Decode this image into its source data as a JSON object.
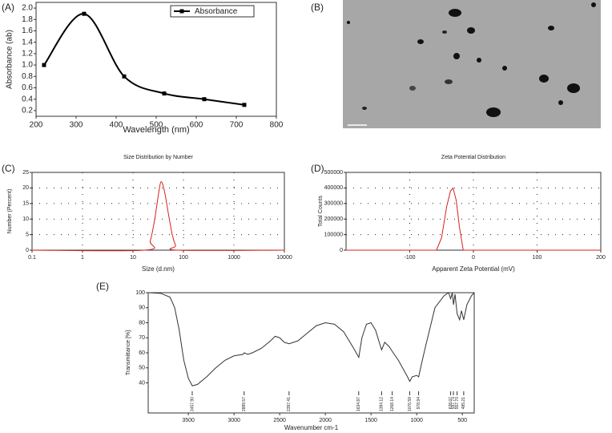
{
  "panel_b_label": "(B)",
  "chart_data": [
    {
      "type": "line",
      "panel": "(A)",
      "x_label": "Wavelength (nm)",
      "y_label": "Absorbance (ab)",
      "x": [
        220,
        320,
        420,
        520,
        620,
        720
      ],
      "series": [
        {
          "name": "Absorbance",
          "color": "#000000",
          "values": [
            1.0,
            1.9,
            0.8,
            0.5,
            0.4,
            0.3
          ]
        }
      ],
      "xlim": [
        200,
        800
      ],
      "xticks": [
        200,
        300,
        400,
        500,
        600,
        700,
        800
      ],
      "ylim": [
        0.1,
        2.1
      ],
      "yticks": [
        0.2,
        0.4,
        0.6,
        0.8,
        {
          "value": 1.0,
          "label": "1.0"
        },
        1.2,
        1.4,
        1.6,
        1.8,
        {
          "value": 2.0,
          "label": "2.0"
        }
      ],
      "smooth": true,
      "markers": true,
      "grid": false,
      "legend": "top-right"
    },
    {
      "type": "line",
      "panel": "(C)",
      "title": "Size Distribution by Number",
      "x_label": "Size (d.nm)",
      "y_label": "Number (Percent)",
      "x": [
        0.1,
        17,
        22,
        27,
        32,
        36,
        42,
        50,
        60,
        70,
        80,
        10000
      ],
      "color": "#d62020",
      "values": [
        0,
        0,
        3,
        10,
        18,
        22,
        19,
        12,
        5,
        1.5,
        0,
        0
      ],
      "xscale": "log",
      "xlim": [
        0.1,
        10000
      ],
      "xticks": [
        0.1,
        1,
        10,
        100,
        1000,
        10000
      ],
      "ylim": [
        0,
        25
      ],
      "yticks": [
        0,
        5,
        10,
        15,
        20,
        25
      ],
      "grid": true,
      "smooth": true
    },
    {
      "type": "line",
      "panel": "(D)",
      "title": "Zeta Potential Distribution",
      "x_label": "Apparent Zeta Potential (mV)",
      "y_label": "Total Counts",
      "x": [
        -200,
        -58,
        -50,
        -42,
        -36,
        -32,
        -27,
        -22,
        -16,
        200
      ],
      "color": "#d62020",
      "values": [
        0,
        0,
        80000,
        280000,
        380000,
        400000,
        320000,
        150000,
        0,
        0
      ],
      "xlim": [
        -200,
        200
      ],
      "xticks": [
        -100,
        0,
        100,
        200
      ],
      "ylim": [
        0,
        500000
      ],
      "yticks": [
        0,
        100000,
        200000,
        300000,
        400000,
        500000
      ],
      "grid": true,
      "smooth": false
    },
    {
      "type": "line",
      "panel": "(E)",
      "x_label": "Wavenumber cm-1",
      "y_label": "Transmittance [%]",
      "x": [
        3940,
        3800,
        3700,
        3650,
        3600,
        3550,
        3500,
        3457,
        3400,
        3300,
        3200,
        3100,
        3000,
        2900,
        2889,
        2850,
        2800,
        2700,
        2600,
        2550,
        2500,
        2450,
        2397,
        2300,
        2200,
        2100,
        2000,
        1900,
        1800,
        1700,
        1634,
        1600,
        1550,
        1500,
        1450,
        1400,
        1384,
        1350,
        1300,
        1268,
        1200,
        1100,
        1076,
        1050,
        1000,
        978,
        950,
        900,
        800,
        700,
        650,
        628,
        610,
        597,
        580,
        557,
        530,
        510,
        485,
        450,
        400,
        370
      ],
      "color": "#333333",
      "values": [
        100,
        99.5,
        97,
        90,
        75,
        55,
        43,
        38,
        39,
        44,
        50,
        55,
        58,
        59,
        60,
        59,
        60,
        63,
        68,
        71,
        70,
        67,
        66,
        68,
        73,
        78,
        80,
        79,
        74,
        64,
        57,
        70,
        79,
        80,
        75,
        65,
        62,
        67,
        64,
        61,
        55,
        44,
        41,
        44,
        45,
        44,
        52,
        65,
        90,
        98,
        100,
        96,
        100,
        92,
        99,
        86,
        82,
        88,
        82,
        92,
        98,
        100
      ],
      "xlim": [
        3940,
        370
      ],
      "xticks": [
        3500,
        3000,
        2500,
        2000,
        1500,
        1000,
        500
      ],
      "ylim": [
        20,
        100
      ],
      "yticks": [
        40,
        50,
        60,
        70,
        80,
        90,
        100
      ],
      "grid": false,
      "smooth": false,
      "annotations": [
        {
          "value": 3457.9,
          "label": "3457.90"
        },
        {
          "value": 2889.57,
          "label": "2889.57"
        },
        {
          "value": 2397.41,
          "label": "2397.41"
        },
        {
          "value": 1634.87,
          "label": "1634.87"
        },
        {
          "value": 1384.12,
          "label": "1384.12"
        },
        {
          "value": 1268.14,
          "label": "1268.14"
        },
        {
          "value": 1076.59,
          "label": "1076.59"
        },
        {
          "value": 978.94,
          "label": "978.94"
        },
        {
          "value": 628.07,
          "label": "628.07"
        },
        {
          "value": 597.74,
          "label": "597.74"
        },
        {
          "value": 557.7,
          "label": "557.70"
        },
        {
          "value": 485.21,
          "label": "485.21"
        }
      ]
    }
  ]
}
